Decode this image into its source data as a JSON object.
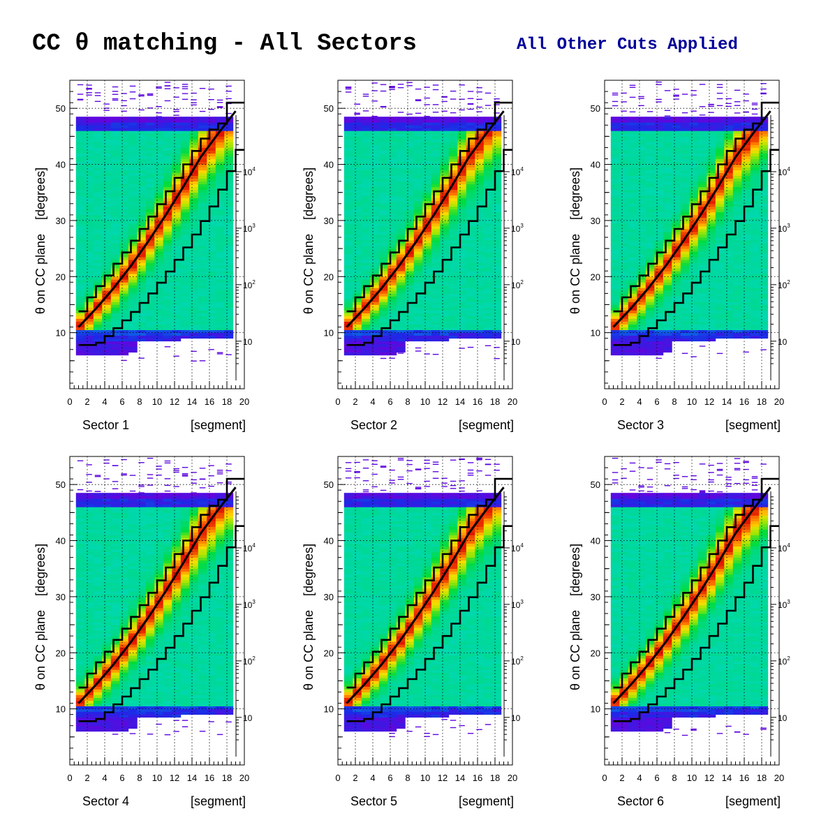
{
  "page": {
    "title": "CC θ matching - All Sectors",
    "subtitle": "All Other Cuts Applied",
    "subtitle_color": "#000099"
  },
  "chart_data": [
    {
      "type": "heatmap",
      "panel": "Sector 1",
      "xlabel_left": "Sector 1",
      "xlabel_right": "[segment]",
      "ylabel": "θ on CC plane    [degrees]",
      "xlim": [
        0,
        20
      ],
      "ylim": [
        0,
        55
      ],
      "xticks": [
        0,
        2,
        4,
        6,
        8,
        10,
        12,
        14,
        16,
        18,
        20
      ],
      "yticks": [
        10,
        20,
        30,
        40,
        50
      ],
      "z_scale": "log",
      "z_ticks": [
        "10",
        "10^2",
        "10^3",
        "10^4"
      ],
      "grid": true,
      "fit_curve": {
        "x": [
          1,
          3,
          5,
          7,
          9,
          11,
          13,
          15,
          17,
          19
        ],
        "y": [
          11,
          14.3,
          17.9,
          21.9,
          26.3,
          31.0,
          36.0,
          41.3,
          45.5,
          49.5
        ]
      },
      "upper_cut": {
        "x": [
          1,
          2,
          3,
          4,
          5,
          6,
          7,
          8,
          9,
          10,
          11,
          12,
          13,
          14,
          15,
          16,
          17,
          18,
          19
        ],
        "y": [
          13.8,
          16.3,
          18.3,
          20.2,
          22.3,
          24.3,
          26.4,
          28.5,
          30.7,
          32.9,
          35.2,
          37.6,
          40.0,
          42.4,
          44.6,
          46.2,
          47.3,
          51.0,
          51.0
        ]
      },
      "lower_cut": {
        "x": [
          1,
          2,
          3,
          4,
          5,
          6,
          7,
          8,
          9,
          10,
          11,
          12,
          13,
          14,
          15,
          16,
          17,
          18,
          19
        ],
        "y": [
          7.8,
          7.8,
          8.2,
          9.4,
          10.8,
          12.2,
          13.7,
          15.3,
          17.0,
          18.9,
          20.9,
          23.0,
          25.2,
          27.5,
          29.9,
          32.5,
          35.5,
          38.8,
          42.6
        ]
      }
    },
    {
      "type": "heatmap",
      "panel": "Sector 2",
      "xlabel_left": "Sector 2",
      "xlabel_right": "[segment]",
      "ylabel": "θ on CC plane    [degrees]",
      "xlim": [
        0,
        20
      ],
      "ylim": [
        0,
        55
      ],
      "xticks": [
        0,
        2,
        4,
        6,
        8,
        10,
        12,
        14,
        16,
        18,
        20
      ],
      "yticks": [
        10,
        20,
        30,
        40,
        50
      ],
      "z_scale": "log",
      "z_ticks": [
        "10",
        "10^2",
        "10^3",
        "10^4"
      ],
      "grid": true,
      "fit_curve": {
        "x": [
          1,
          3,
          5,
          7,
          9,
          11,
          13,
          15,
          17,
          19
        ],
        "y": [
          11,
          14.3,
          17.9,
          21.9,
          26.3,
          31.0,
          36.0,
          41.3,
          45.5,
          49.5
        ]
      },
      "upper_cut": {
        "x": [
          1,
          2,
          3,
          4,
          5,
          6,
          7,
          8,
          9,
          10,
          11,
          12,
          13,
          14,
          15,
          16,
          17,
          18,
          19
        ],
        "y": [
          13.8,
          16.3,
          18.3,
          20.2,
          22.3,
          24.3,
          26.4,
          28.5,
          30.7,
          32.9,
          35.2,
          37.6,
          40.0,
          42.4,
          44.6,
          46.2,
          47.3,
          51.0,
          51.0
        ]
      },
      "lower_cut": {
        "x": [
          1,
          2,
          3,
          4,
          5,
          6,
          7,
          8,
          9,
          10,
          11,
          12,
          13,
          14,
          15,
          16,
          17,
          18,
          19
        ],
        "y": [
          7.8,
          7.8,
          8.2,
          9.4,
          10.8,
          12.2,
          13.7,
          15.3,
          17.0,
          18.9,
          20.9,
          23.0,
          25.2,
          27.5,
          29.9,
          32.5,
          35.5,
          38.8,
          42.6
        ]
      }
    },
    {
      "type": "heatmap",
      "panel": "Sector 3",
      "xlabel_left": "Sector 3",
      "xlabel_right": "[segment]",
      "ylabel": "θ on CC plane    [degrees]",
      "xlim": [
        0,
        20
      ],
      "ylim": [
        0,
        55
      ],
      "xticks": [
        0,
        2,
        4,
        6,
        8,
        10,
        12,
        14,
        16,
        18,
        20
      ],
      "yticks": [
        10,
        20,
        30,
        40,
        50
      ],
      "z_scale": "log",
      "z_ticks": [
        "10",
        "10^2",
        "10^3",
        "10^4"
      ],
      "grid": true,
      "fit_curve": {
        "x": [
          1,
          3,
          5,
          7,
          9,
          11,
          13,
          15,
          17,
          19
        ],
        "y": [
          11,
          14.3,
          17.9,
          21.9,
          26.3,
          31.0,
          36.0,
          41.3,
          45.5,
          49.5
        ]
      },
      "upper_cut": {
        "x": [
          1,
          2,
          3,
          4,
          5,
          6,
          7,
          8,
          9,
          10,
          11,
          12,
          13,
          14,
          15,
          16,
          17,
          18,
          19
        ],
        "y": [
          13.8,
          16.3,
          18.3,
          20.2,
          22.3,
          24.3,
          26.4,
          28.5,
          30.7,
          32.9,
          35.2,
          37.6,
          40.0,
          42.4,
          44.6,
          46.2,
          47.3,
          51.0,
          51.0
        ]
      },
      "lower_cut": {
        "x": [
          1,
          2,
          3,
          4,
          5,
          6,
          7,
          8,
          9,
          10,
          11,
          12,
          13,
          14,
          15,
          16,
          17,
          18,
          19
        ],
        "y": [
          7.8,
          7.8,
          8.2,
          9.4,
          10.8,
          12.2,
          13.7,
          15.3,
          17.0,
          18.9,
          20.9,
          23.0,
          25.2,
          27.5,
          29.9,
          32.5,
          35.5,
          38.8,
          42.6
        ]
      }
    },
    {
      "type": "heatmap",
      "panel": "Sector 4",
      "xlabel_left": "Sector 4",
      "xlabel_right": "[segment]",
      "ylabel": "θ on CC plane    [degrees]",
      "xlim": [
        0,
        20
      ],
      "ylim": [
        0,
        55
      ],
      "xticks": [
        0,
        2,
        4,
        6,
        8,
        10,
        12,
        14,
        16,
        18,
        20
      ],
      "yticks": [
        10,
        20,
        30,
        40,
        50
      ],
      "z_scale": "log",
      "z_ticks": [
        "10",
        "10^2",
        "10^3",
        "10^4"
      ],
      "grid": true,
      "fit_curve": {
        "x": [
          1,
          3,
          5,
          7,
          9,
          11,
          13,
          15,
          17,
          19
        ],
        "y": [
          11,
          14.3,
          17.9,
          21.9,
          26.3,
          31.0,
          36.0,
          41.3,
          45.5,
          49.5
        ]
      },
      "upper_cut": {
        "x": [
          1,
          2,
          3,
          4,
          5,
          6,
          7,
          8,
          9,
          10,
          11,
          12,
          13,
          14,
          15,
          16,
          17,
          18,
          19
        ],
        "y": [
          13.8,
          16.3,
          18.3,
          20.2,
          22.3,
          24.3,
          26.4,
          28.5,
          30.7,
          32.9,
          35.2,
          37.6,
          40.0,
          42.4,
          44.6,
          46.2,
          47.3,
          51.0,
          51.0
        ]
      },
      "lower_cut": {
        "x": [
          1,
          2,
          3,
          4,
          5,
          6,
          7,
          8,
          9,
          10,
          11,
          12,
          13,
          14,
          15,
          16,
          17,
          18,
          19
        ],
        "y": [
          7.8,
          7.8,
          8.2,
          9.4,
          10.8,
          12.2,
          13.7,
          15.3,
          17.0,
          18.9,
          20.9,
          23.0,
          25.2,
          27.5,
          29.9,
          32.5,
          35.5,
          38.8,
          42.6
        ]
      }
    },
    {
      "type": "heatmap",
      "panel": "Sector 5",
      "xlabel_left": "Sector 5",
      "xlabel_right": "[segment]",
      "ylabel": "θ on CC plane    [degrees]",
      "xlim": [
        0,
        20
      ],
      "ylim": [
        0,
        55
      ],
      "xticks": [
        0,
        2,
        4,
        6,
        8,
        10,
        12,
        14,
        16,
        18,
        20
      ],
      "yticks": [
        10,
        20,
        30,
        40,
        50
      ],
      "z_scale": "log",
      "z_ticks": [
        "10",
        "10^2",
        "10^3",
        "10^4"
      ],
      "grid": true,
      "fit_curve": {
        "x": [
          1,
          3,
          5,
          7,
          9,
          11,
          13,
          15,
          17,
          19
        ],
        "y": [
          11,
          14.3,
          17.9,
          21.9,
          26.3,
          31.0,
          36.0,
          41.3,
          45.5,
          49.5
        ]
      },
      "upper_cut": {
        "x": [
          1,
          2,
          3,
          4,
          5,
          6,
          7,
          8,
          9,
          10,
          11,
          12,
          13,
          14,
          15,
          16,
          17,
          18,
          19
        ],
        "y": [
          13.8,
          16.3,
          18.3,
          20.2,
          22.3,
          24.3,
          26.4,
          28.5,
          30.7,
          32.9,
          35.2,
          37.6,
          40.0,
          42.4,
          44.6,
          46.2,
          47.3,
          51.0,
          51.0
        ]
      },
      "lower_cut": {
        "x": [
          1,
          2,
          3,
          4,
          5,
          6,
          7,
          8,
          9,
          10,
          11,
          12,
          13,
          14,
          15,
          16,
          17,
          18,
          19
        ],
        "y": [
          7.8,
          7.8,
          8.2,
          9.4,
          10.8,
          12.2,
          13.7,
          15.3,
          17.0,
          18.9,
          20.9,
          23.0,
          25.2,
          27.5,
          29.9,
          32.5,
          35.5,
          38.8,
          42.6
        ]
      }
    },
    {
      "type": "heatmap",
      "panel": "Sector 6",
      "xlabel_left": "Sector 6",
      "xlabel_right": "[segment]",
      "ylabel": "θ on CC plane    [degrees]",
      "xlim": [
        0,
        20
      ],
      "ylim": [
        0,
        55
      ],
      "xticks": [
        0,
        2,
        4,
        6,
        8,
        10,
        12,
        14,
        16,
        18,
        20
      ],
      "yticks": [
        10,
        20,
        30,
        40,
        50
      ],
      "z_scale": "log",
      "z_ticks": [
        "10",
        "10^2",
        "10^3",
        "10^4"
      ],
      "grid": true,
      "fit_curve": {
        "x": [
          1,
          3,
          5,
          7,
          9,
          11,
          13,
          15,
          17,
          19
        ],
        "y": [
          11,
          14.3,
          17.9,
          21.9,
          26.3,
          31.0,
          36.0,
          41.3,
          45.5,
          49.5
        ]
      },
      "upper_cut": {
        "x": [
          1,
          2,
          3,
          4,
          5,
          6,
          7,
          8,
          9,
          10,
          11,
          12,
          13,
          14,
          15,
          16,
          17,
          18,
          19
        ],
        "y": [
          13.8,
          16.3,
          18.3,
          20.2,
          22.3,
          24.3,
          26.4,
          28.5,
          30.7,
          32.9,
          35.2,
          37.6,
          40.0,
          42.4,
          44.6,
          46.2,
          47.3,
          51.0,
          51.0
        ]
      },
      "lower_cut": {
        "x": [
          1,
          2,
          3,
          4,
          5,
          6,
          7,
          8,
          9,
          10,
          11,
          12,
          13,
          14,
          15,
          16,
          17,
          18,
          19
        ],
        "y": [
          7.8,
          7.8,
          8.2,
          9.4,
          10.8,
          12.2,
          13.7,
          15.3,
          17.0,
          18.9,
          20.9,
          23.0,
          25.2,
          27.5,
          29.9,
          32.5,
          35.5,
          38.8,
          42.6
        ]
      }
    }
  ]
}
